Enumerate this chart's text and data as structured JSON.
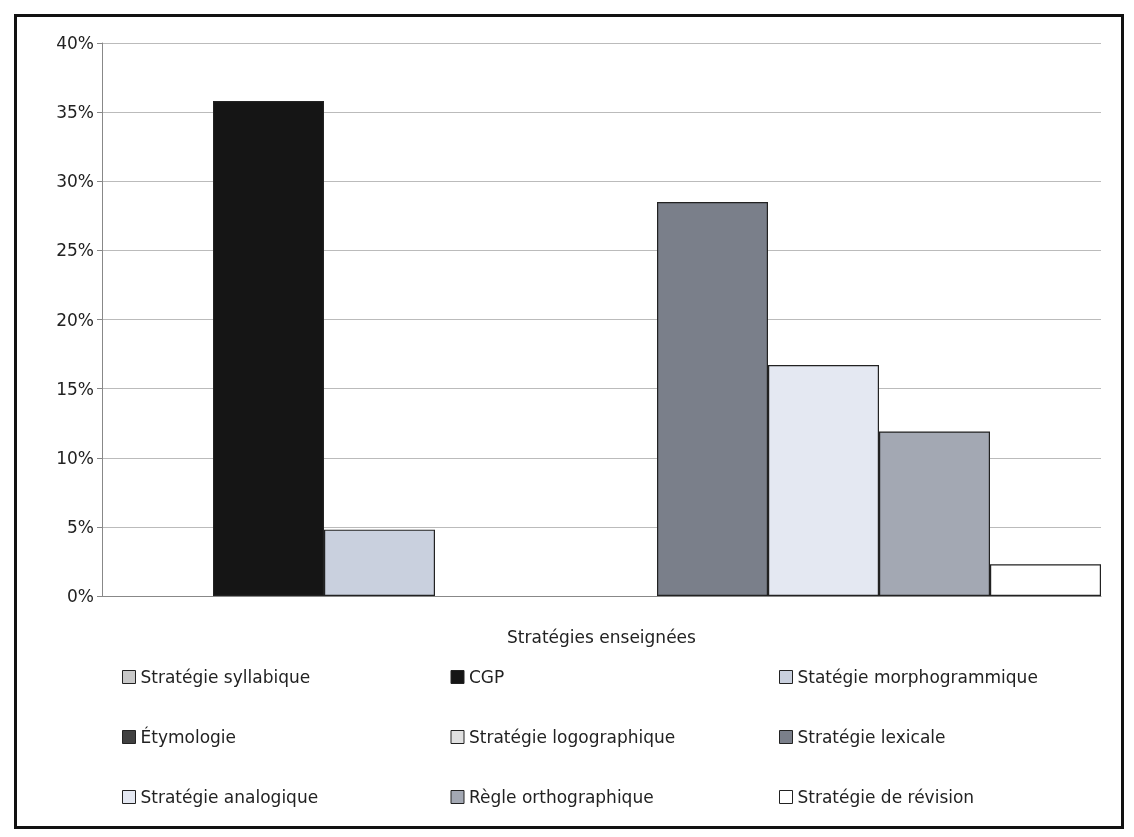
{
  "chart_data": {
    "type": "bar",
    "categories": [
      "Stratégies enseignées"
    ],
    "series": [
      {
        "name": "Stratégie syllabique",
        "color": "#c8c8c8",
        "values": [
          0
        ]
      },
      {
        "name": "CGP",
        "color": "#151515",
        "values": [
          35.8
        ]
      },
      {
        "name": "Statégie morphogrammique",
        "color": "#c9d0de",
        "values": [
          4.8
        ]
      },
      {
        "name": "Étymologie",
        "color": "#404040",
        "values": [
          0
        ]
      },
      {
        "name": "Stratégie logographique",
        "color": "#e0e0e0",
        "values": [
          0
        ]
      },
      {
        "name": "Stratégie lexicale",
        "color": "#7a7f8a",
        "values": [
          28.5
        ]
      },
      {
        "name": "Stratégie analogique",
        "color": "#e4e8f2",
        "values": [
          16.7
        ]
      },
      {
        "name": "Règle orthographique",
        "color": "#a3a8b3",
        "values": [
          11.9
        ]
      },
      {
        "name": "Stratégie de révision",
        "color": "#ffffff",
        "values": [
          2.3
        ]
      }
    ],
    "ylim": [
      0,
      40
    ],
    "yticks": [
      {
        "value": 0,
        "label": "0%"
      },
      {
        "value": 5,
        "label": "5%"
      },
      {
        "value": 10,
        "label": "10%"
      },
      {
        "value": 15,
        "label": "15%"
      },
      {
        "value": 20,
        "label": "20%"
      },
      {
        "value": 25,
        "label": "25%"
      },
      {
        "value": 30,
        "label": "30%"
      },
      {
        "value": 35,
        "label": "35%"
      },
      {
        "value": 40,
        "label": "40%"
      }
    ],
    "grid": "y",
    "legend": "bottom"
  }
}
